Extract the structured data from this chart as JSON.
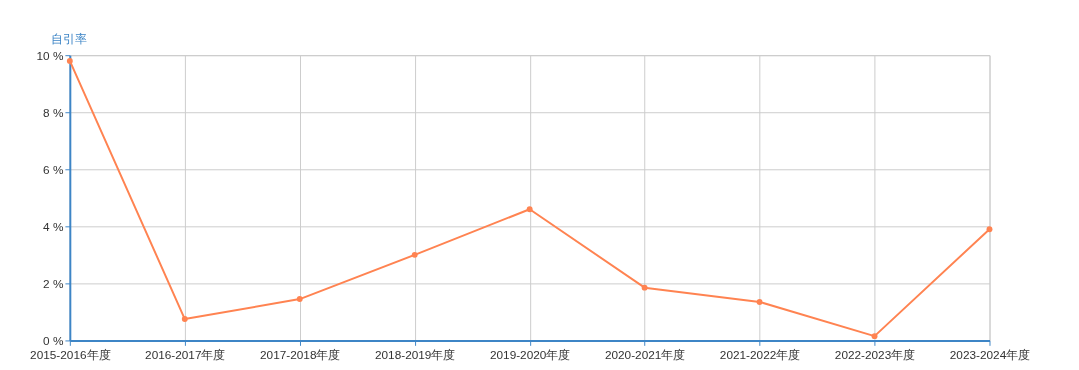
{
  "chart_data": {
    "type": "line",
    "ylabel": "自引率",
    "categories": [
      "2015-2016年度",
      "2016-2017年度",
      "2017-2018年度",
      "2018-2019年度",
      "2019-2020年度",
      "2020-2021年度",
      "2021-2022年度",
      "2022-2023年度",
      "2023-2024年度"
    ],
    "series": [
      {
        "color": "#ff8351",
        "values": [
          9.8,
          0.75,
          1.45,
          3.0,
          4.6,
          1.85,
          1.35,
          0.15,
          3.9
        ]
      }
    ],
    "ylim": [
      0,
      10
    ],
    "yticks": [
      {
        "value": 0,
        "label": "0 %"
      },
      {
        "value": 2,
        "label": "2 %"
      },
      {
        "value": 4,
        "label": "4 %"
      },
      {
        "value": 6,
        "label": "6 %"
      },
      {
        "value": 8,
        "label": "8 %"
      },
      {
        "value": 10,
        "label": "10 %"
      }
    ],
    "grid": true,
    "marker": "circle",
    "line_style": "solid"
  }
}
